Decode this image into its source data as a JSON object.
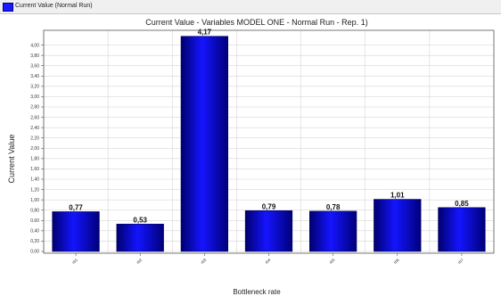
{
  "legend": {
    "label": "Current Value (Normal Run)",
    "color": "#1a1aff"
  },
  "chart_data": {
    "type": "bar",
    "title": "Current Value - Variables MODEL ONE - Normal Run - Rep. 1)",
    "xlabel": "Bottleneck rate",
    "ylabel": "Current Value",
    "categories": [
      "rb1",
      "rb2",
      "rb3",
      "rb4",
      "rb5",
      "rb6",
      "rb7"
    ],
    "values": [
      0.77,
      0.53,
      4.17,
      0.79,
      0.78,
      1.01,
      0.85
    ],
    "data_labels": [
      "0,77",
      "0,53",
      "4,17",
      "0,79",
      "0,78",
      "1,01",
      "0,85"
    ],
    "ylim": [
      0,
      4.2
    ],
    "yticks": [
      0,
      0.2,
      0.4,
      0.6,
      0.8,
      1.0,
      1.2,
      1.4,
      1.6,
      1.8,
      2.0,
      2.2,
      2.4,
      2.6,
      2.8,
      3.0,
      3.2,
      3.4,
      3.6,
      3.8,
      4.0
    ],
    "ytick_labels": [
      "0,00",
      "0,20",
      "0,40",
      "0,60",
      "0,80",
      "1,00",
      "1,20",
      "1,40",
      "1,60",
      "1,80",
      "2,00",
      "2,20",
      "2,40",
      "2,60",
      "2,80",
      "3,00",
      "3,20",
      "3,40",
      "3,60",
      "3,80",
      "4,00"
    ],
    "grid": true,
    "legend_position": "top-left",
    "bar_color": "#0000e0"
  }
}
